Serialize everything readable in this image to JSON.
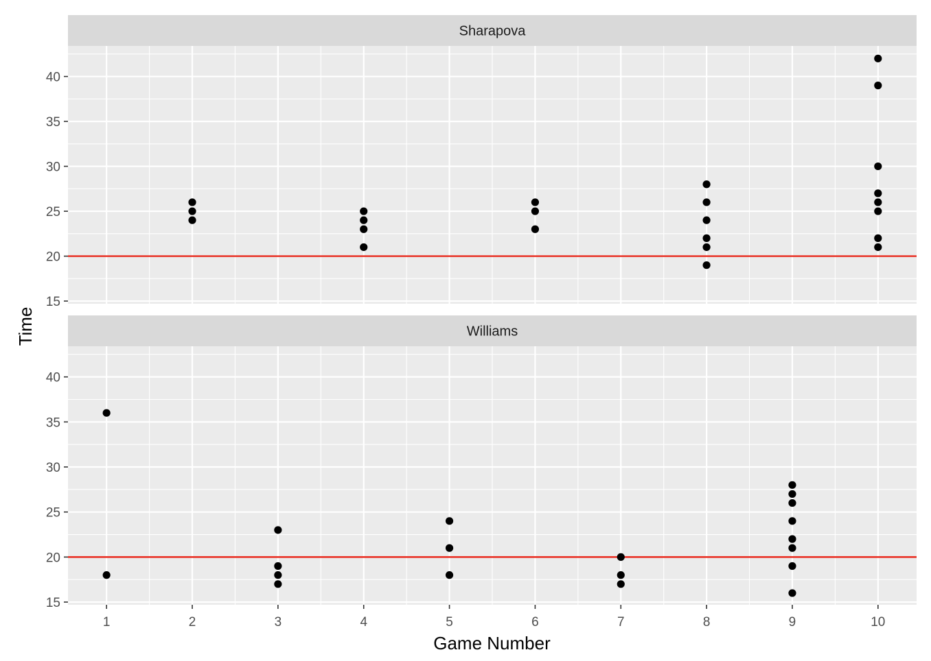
{
  "chart_data": {
    "type": "scatter",
    "xlabel": "Game Number",
    "ylabel": "Time",
    "x_ticks": [
      1,
      2,
      3,
      4,
      5,
      6,
      7,
      8,
      9,
      10
    ],
    "x_range": [
      0.55,
      10.45
    ],
    "y_range": [
      14.7,
      43.4
    ],
    "y_ticks": [
      15,
      20,
      25,
      30,
      35,
      40
    ],
    "reference_line": {
      "y": 20,
      "color": "#e8291c"
    },
    "point_color": "#000000",
    "panel_background": "#ebebeb",
    "strip_background": "#d9d9d9",
    "grid": true,
    "panels": [
      {
        "name": "Sharapova",
        "points": [
          {
            "x": 2,
            "y": 26
          },
          {
            "x": 2,
            "y": 25
          },
          {
            "x": 2,
            "y": 24
          },
          {
            "x": 4,
            "y": 25
          },
          {
            "x": 4,
            "y": 24
          },
          {
            "x": 4,
            "y": 23
          },
          {
            "x": 4,
            "y": 21
          },
          {
            "x": 6,
            "y": 26
          },
          {
            "x": 6,
            "y": 25
          },
          {
            "x": 6,
            "y": 23
          },
          {
            "x": 8,
            "y": 28
          },
          {
            "x": 8,
            "y": 26
          },
          {
            "x": 8,
            "y": 24
          },
          {
            "x": 8,
            "y": 22
          },
          {
            "x": 8,
            "y": 21
          },
          {
            "x": 8,
            "y": 19
          },
          {
            "x": 10,
            "y": 42
          },
          {
            "x": 10,
            "y": 39
          },
          {
            "x": 10,
            "y": 30
          },
          {
            "x": 10,
            "y": 27
          },
          {
            "x": 10,
            "y": 26
          },
          {
            "x": 10,
            "y": 25
          },
          {
            "x": 10,
            "y": 22
          },
          {
            "x": 10,
            "y": 21
          }
        ]
      },
      {
        "name": "Williams",
        "points": [
          {
            "x": 1,
            "y": 36
          },
          {
            "x": 1,
            "y": 18
          },
          {
            "x": 3,
            "y": 23
          },
          {
            "x": 3,
            "y": 19
          },
          {
            "x": 3,
            "y": 18
          },
          {
            "x": 3,
            "y": 17
          },
          {
            "x": 5,
            "y": 24
          },
          {
            "x": 5,
            "y": 21
          },
          {
            "x": 5,
            "y": 18
          },
          {
            "x": 7,
            "y": 20
          },
          {
            "x": 7,
            "y": 18
          },
          {
            "x": 7,
            "y": 17
          },
          {
            "x": 9,
            "y": 28
          },
          {
            "x": 9,
            "y": 27
          },
          {
            "x": 9,
            "y": 26
          },
          {
            "x": 9,
            "y": 24
          },
          {
            "x": 9,
            "y": 22
          },
          {
            "x": 9,
            "y": 21
          },
          {
            "x": 9,
            "y": 19
          },
          {
            "x": 9,
            "y": 16
          }
        ]
      }
    ]
  }
}
